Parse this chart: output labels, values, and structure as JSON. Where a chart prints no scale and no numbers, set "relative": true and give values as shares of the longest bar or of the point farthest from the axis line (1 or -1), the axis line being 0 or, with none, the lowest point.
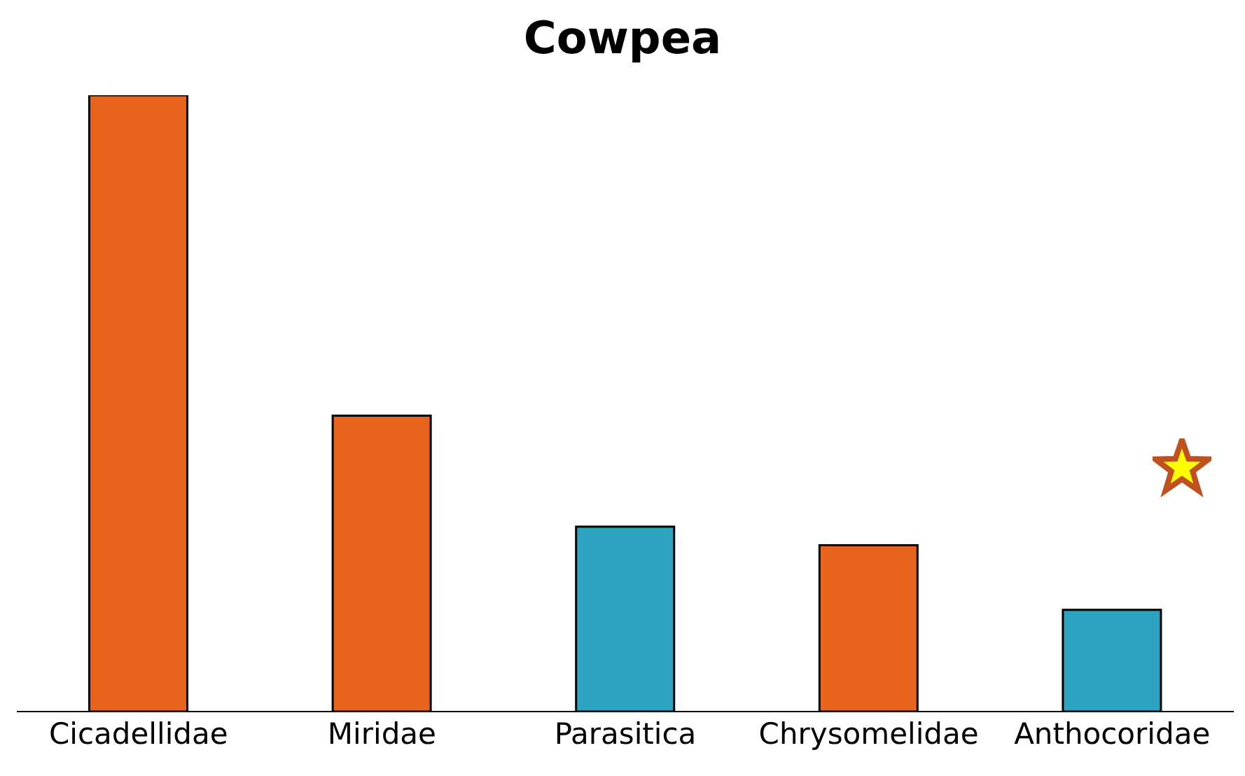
{
  "chart_data": {
    "type": "bar",
    "title": "Cowpea",
    "relative": true,
    "categories": [
      "Cicadellidae",
      "Miridae",
      "Parasitica",
      "Chrysomelidae",
      "Anthocoridae"
    ],
    "values": [
      1,
      0.48,
      0.3,
      0.27,
      0.165
    ],
    "colors": [
      "#e8631e",
      "#e8631e",
      "#2ca3c0",
      "#e8631e",
      "#2ca3c0"
    ],
    "grid": false,
    "legend": false
  }
}
